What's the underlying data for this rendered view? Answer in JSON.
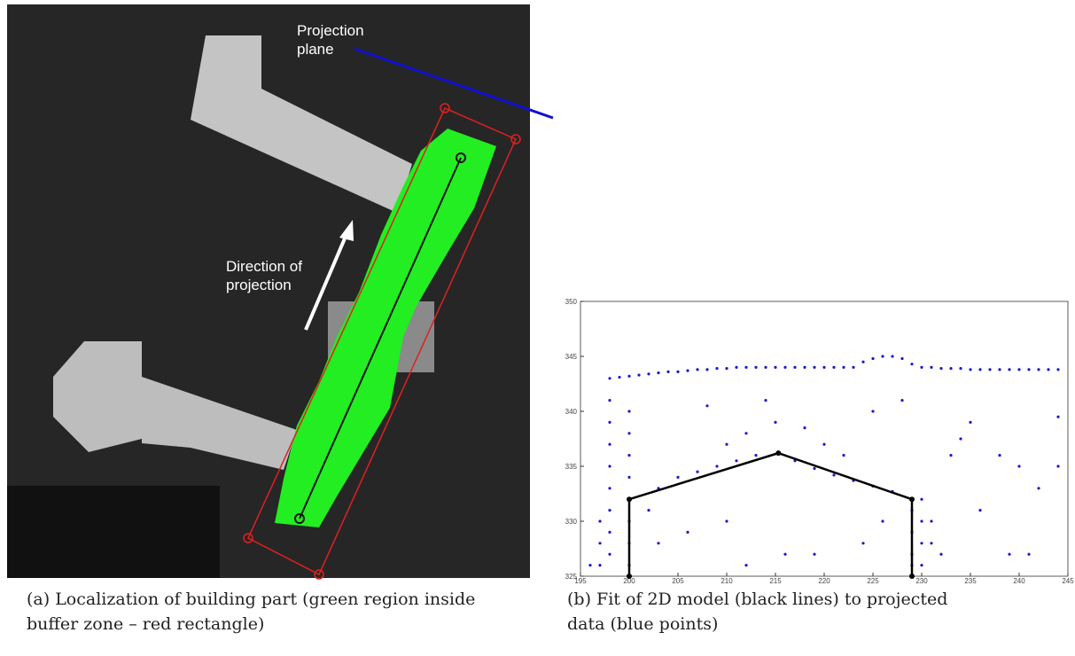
{
  "panels": [
    {
      "caption": "(a) Localization of building part (green region inside buffer zone – red rectangle)",
      "labels": [
        "Projection plane",
        "Direction of projection"
      ]
    },
    {
      "caption": "(b) Fit of 2D model (black lines) to projected data (blue points)"
    }
  ],
  "chart_data": {
    "type": "scatter",
    "xlim": [
      195,
      245
    ],
    "xticks": [
      195,
      200,
      205,
      210,
      215,
      220,
      225,
      230,
      235,
      240,
      245
    ],
    "ylim": [
      325,
      350
    ],
    "yticks": [
      325,
      330,
      335,
      340,
      345,
      350
    ],
    "series": [
      {
        "color": "#1a1ad0",
        "mode": "points",
        "x": [
          198,
          199,
          200,
          201,
          202,
          203,
          204,
          205,
          206,
          207,
          208,
          209,
          210,
          211,
          212,
          213,
          214,
          215,
          216,
          217,
          218,
          219,
          220,
          221,
          222,
          223,
          224,
          225,
          226,
          227,
          228,
          229,
          230,
          231,
          232,
          233,
          234,
          235,
          236,
          237,
          238,
          239,
          240,
          241,
          242,
          243,
          244,
          198,
          198,
          198,
          198,
          198,
          198,
          198,
          198,
          197,
          197,
          197,
          196,
          200,
          200,
          200,
          200,
          200,
          200,
          200,
          229,
          229,
          229,
          229,
          230,
          230,
          230,
          230,
          231,
          231,
          232,
          203,
          205,
          207,
          209,
          211,
          213,
          217,
          219,
          221,
          223,
          225,
          227,
          210,
          212,
          215,
          218,
          220,
          222,
          214,
          208,
          225,
          228,
          235,
          238,
          240,
          242,
          244,
          244,
          236,
          239,
          241,
          233,
          234,
          206,
          210,
          216,
          219,
          224,
          212,
          203,
          202,
          226
        ],
        "y": [
          343,
          343.1,
          343.2,
          343.3,
          343.4,
          343.5,
          343.6,
          343.6,
          343.7,
          343.8,
          343.8,
          343.9,
          343.9,
          344,
          344,
          344,
          344,
          344,
          344,
          344,
          344,
          344,
          344,
          344,
          344,
          344,
          344.5,
          344.8,
          345,
          345,
          344.8,
          344.3,
          344,
          344,
          343.9,
          343.9,
          343.9,
          343.8,
          343.8,
          343.8,
          343.8,
          343.8,
          343.8,
          343.8,
          343.8,
          343.8,
          343.8,
          341,
          339,
          337,
          335,
          333,
          331,
          329,
          327,
          330,
          328,
          326,
          326,
          340,
          338,
          336,
          334,
          330,
          328,
          326,
          331,
          329,
          327,
          326,
          332,
          330,
          328,
          326,
          330,
          328,
          327,
          333,
          334,
          334.5,
          335,
          335.5,
          336,
          335.5,
          334.8,
          334.2,
          333.7,
          333.2,
          332.7,
          337,
          338,
          339,
          338.5,
          337,
          336,
          341,
          340.5,
          340,
          341,
          339,
          336,
          335,
          333,
          335,
          339.5,
          331,
          327,
          327,
          336,
          337.5,
          329,
          330,
          327,
          327,
          328,
          326,
          328,
          331,
          330
        ]
      },
      {
        "color": "#000000",
        "mode": "line",
        "x": [
          200,
          200,
          215.3,
          229,
          229
        ],
        "y": [
          325,
          332,
          336.2,
          332,
          325
        ]
      }
    ]
  }
}
